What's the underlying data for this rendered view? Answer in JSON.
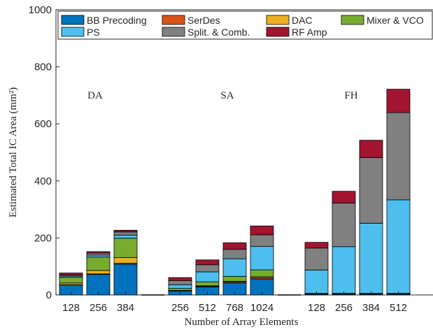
{
  "chart_data": {
    "type": "bar",
    "stacked": true,
    "xlabel": "Number of Array Elements",
    "ylabel": "Estimated Total IC Area (mm²)",
    "ylim": [
      0,
      1000
    ],
    "yticks": [
      0,
      200,
      400,
      600,
      800,
      1000
    ],
    "grid": false,
    "legend_position": "top",
    "groups": [
      {
        "label": "DA",
        "categories": [
          "128",
          "256",
          "384"
        ]
      },
      {
        "label": "SA",
        "categories": [
          "256",
          "512",
          "768",
          "1024"
        ]
      },
      {
        "label": "FH",
        "categories": [
          "128",
          "256",
          "384",
          "512"
        ]
      }
    ],
    "series": [
      {
        "name": "BB Precoding",
        "color": "#0072BD",
        "values": [
          35,
          72,
          108,
          14,
          28,
          42,
          56,
          3,
          3,
          3,
          3
        ]
      },
      {
        "name": "SerDes",
        "color": "#D95319",
        "values": [
          1,
          2,
          3,
          1,
          2,
          3,
          4,
          1,
          1,
          1,
          1
        ]
      },
      {
        "name": "DAC",
        "color": "#EDB120",
        "values": [
          6,
          12,
          20,
          1,
          2,
          3,
          4,
          0.5,
          0.5,
          0.5,
          0.5
        ]
      },
      {
        "name": "Mixer & VCO",
        "color": "#77AC30",
        "values": [
          20,
          47,
          68,
          7,
          14,
          17,
          24,
          1,
          1,
          1,
          1
        ]
      },
      {
        "name": "PS",
        "color": "#4DBEEE",
        "values": [
          4,
          7,
          11,
          13,
          35,
          62,
          82,
          82,
          164,
          246,
          328
        ]
      },
      {
        "name": "Split. & Comb.",
        "color": "#808080",
        "values": [
          4,
          7,
          11,
          14,
          25,
          33,
          41,
          77,
          153,
          230,
          306
        ]
      },
      {
        "name": "RF Amp",
        "color": "#A2142F",
        "values": [
          7,
          5,
          6,
          11,
          17,
          23,
          31,
          20,
          41,
          61,
          82
        ]
      }
    ]
  }
}
